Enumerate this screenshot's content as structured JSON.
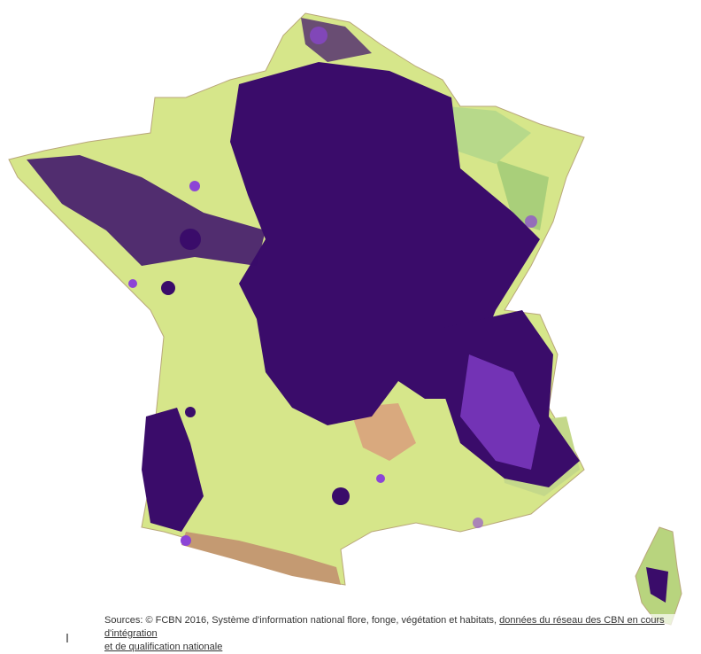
{
  "source": {
    "text": "Sources: © FCBN 2016, Système d'information national flore, fonge, végétation et habitats, ",
    "link_lines": [
      "données du réseau des CBN en cours d'intégration",
      "et de qualification nationale"
    ]
  }
}
